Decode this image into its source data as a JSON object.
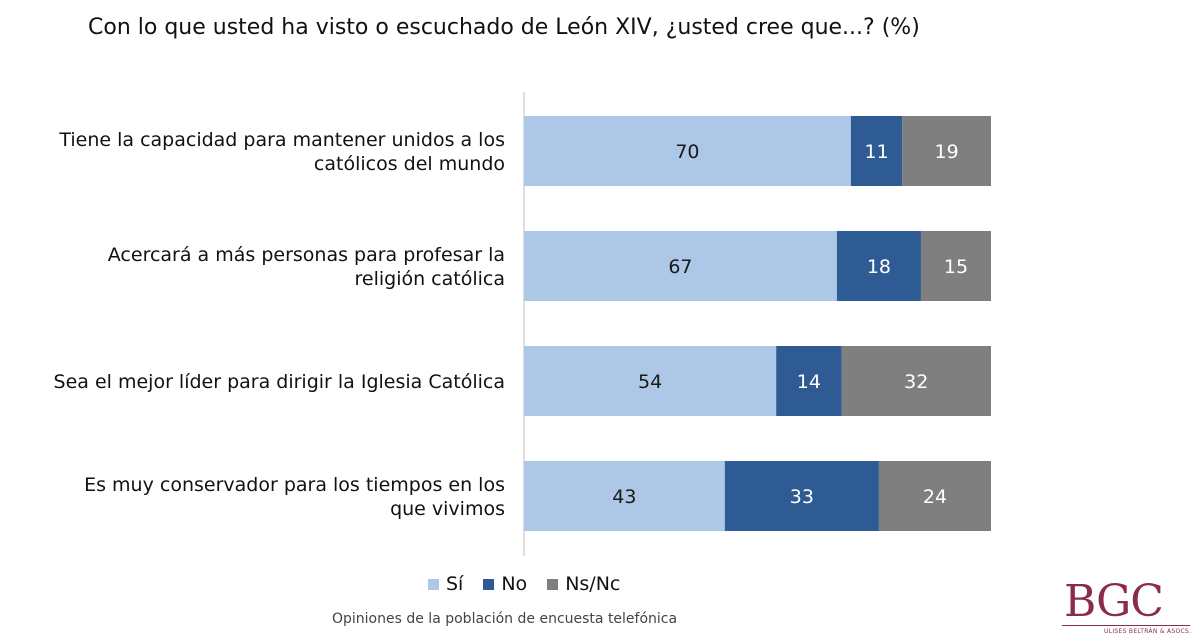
{
  "title": "Con lo que usted ha visto o escuchado de León XIV, ¿usted cree que...? (%)",
  "footer": "Opiniones de la población de encuesta telefónica",
  "logo": {
    "mark": "BGC",
    "subtitle": "ULISES BELTRÁN & ASOCS."
  },
  "colors": {
    "si": "#adc8e6",
    "no": "#2e5b93",
    "nsnc": "#7f7f7f",
    "axis": "#bfbfbf"
  },
  "chart_data": {
    "type": "bar",
    "orientation": "horizontal",
    "stacked": true,
    "xlim": [
      0,
      100
    ],
    "grid": false,
    "legend_position": "bottom",
    "categories": [
      [
        "Tiene la capacidad para mantener unidos a los",
        "católicos del mundo"
      ],
      [
        "Acercará a más personas para profesar la",
        "religión católica"
      ],
      [
        "Sea el mejor líder para dirigir la Iglesia Católica"
      ],
      [
        "Es muy conservador para los tiempos en los",
        "que vivimos"
      ]
    ],
    "series": [
      {
        "name": "Sí",
        "values": [
          70,
          67,
          54,
          43
        ]
      },
      {
        "name": "No",
        "values": [
          11,
          18,
          14,
          33
        ]
      },
      {
        "name": "Ns/Nc",
        "values": [
          19,
          15,
          32,
          24
        ]
      }
    ]
  }
}
